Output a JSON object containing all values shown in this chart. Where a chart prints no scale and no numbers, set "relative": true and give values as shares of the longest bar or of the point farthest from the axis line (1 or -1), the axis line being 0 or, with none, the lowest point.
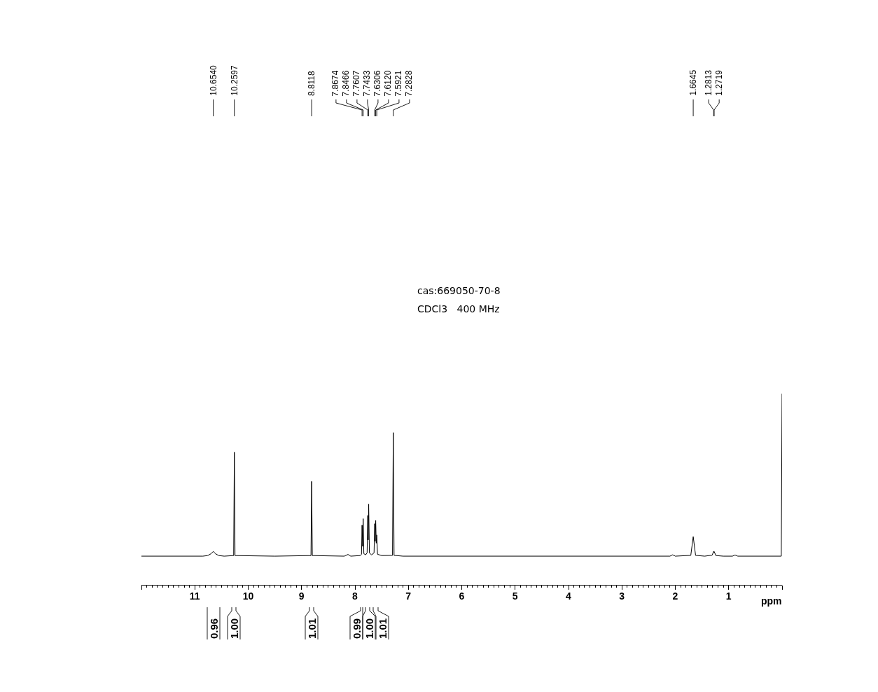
{
  "chart_data": {
    "type": "line",
    "relative": true,
    "title": "cas:669050-70-8",
    "subtitle": "CDCl3   400 MHz",
    "x": [
      12.0,
      10.85,
      10.76,
      10.7,
      10.654,
      10.61,
      10.55,
      10.45,
      10.272,
      10.2597,
      10.247,
      9.5,
      8.824,
      8.8118,
      8.799,
      8.2,
      8.13,
      8.08,
      7.9,
      7.878,
      7.8674,
      7.857,
      7.8466,
      7.834,
      7.8,
      7.773,
      7.7607,
      7.752,
      7.7433,
      7.73,
      7.69,
      7.643,
      7.6306,
      7.621,
      7.612,
      7.602,
      7.5921,
      7.578,
      7.5,
      7.297,
      7.2828,
      7.268,
      7.1,
      2.1,
      2.05,
      2.0,
      1.71,
      1.6645,
      1.62,
      1.45,
      1.31,
      1.2813,
      1.2766,
      1.2719,
      1.24,
      1.1,
      0.93,
      0.88,
      0.83,
      0.015,
      0.0
    ],
    "series": [
      {
        "color": "#000000",
        "values": [
          0.15,
          0.15,
          0.153,
          0.162,
          0.175,
          0.162,
          0.153,
          0.15,
          0.153,
          0.694,
          0.153,
          0.15,
          0.153,
          0.541,
          0.153,
          0.15,
          0.159,
          0.15,
          0.153,
          0.16,
          0.312,
          0.201,
          0.346,
          0.163,
          0.157,
          0.167,
          0.363,
          0.235,
          0.422,
          0.167,
          0.157,
          0.167,
          0.32,
          0.227,
          0.337,
          0.218,
          0.261,
          0.16,
          0.153,
          0.154,
          0.796,
          0.154,
          0.15,
          0.15,
          0.157,
          0.15,
          0.154,
          0.252,
          0.154,
          0.15,
          0.155,
          0.175,
          0.17,
          0.174,
          0.153,
          0.15,
          0.15,
          0.156,
          0.15,
          0.15,
          1.0
        ]
      }
    ],
    "xlim": [
      12,
      0
    ],
    "xticks": [
      {
        "value": 12,
        "label": null
      },
      {
        "value": 11.9,
        "label": null
      },
      {
        "value": 11.8,
        "label": null
      },
      {
        "value": 11.7,
        "label": null
      },
      {
        "value": 11.6,
        "label": null
      },
      {
        "value": 11.5,
        "label": null
      },
      {
        "value": 11.4,
        "label": null
      },
      {
        "value": 11.3,
        "label": null
      },
      {
        "value": 11.2,
        "label": null
      },
      {
        "value": 11.1,
        "label": null
      },
      11,
      {
        "value": 10.9,
        "label": null
      },
      {
        "value": 10.8,
        "label": null
      },
      {
        "value": 10.7,
        "label": null
      },
      {
        "value": 10.6,
        "label": null
      },
      {
        "value": 10.5,
        "label": null
      },
      {
        "value": 10.4,
        "label": null
      },
      {
        "value": 10.3,
        "label": null
      },
      {
        "value": 10.2,
        "label": null
      },
      {
        "value": 10.1,
        "label": null
      },
      10,
      {
        "value": 9.9,
        "label": null
      },
      {
        "value": 9.8,
        "label": null
      },
      {
        "value": 9.7,
        "label": null
      },
      {
        "value": 9.6,
        "label": null
      },
      {
        "value": 9.5,
        "label": null
      },
      {
        "value": 9.4,
        "label": null
      },
      {
        "value": 9.3,
        "label": null
      },
      {
        "value": 9.2,
        "label": null
      },
      {
        "value": 9.1,
        "label": null
      },
      9,
      {
        "value": 8.9,
        "label": null
      },
      {
        "value": 8.8,
        "label": null
      },
      {
        "value": 8.7,
        "label": null
      },
      {
        "value": 8.6,
        "label": null
      },
      {
        "value": 8.5,
        "label": null
      },
      {
        "value": 8.4,
        "label": null
      },
      {
        "value": 8.3,
        "label": null
      },
      {
        "value": 8.2,
        "label": null
      },
      {
        "value": 8.1,
        "label": null
      },
      8,
      {
        "value": 7.9,
        "label": null
      },
      {
        "value": 7.8,
        "label": null
      },
      {
        "value": 7.7,
        "label": null
      },
      {
        "value": 7.6,
        "label": null
      },
      {
        "value": 7.5,
        "label": null
      },
      {
        "value": 7.4,
        "label": null
      },
      {
        "value": 7.3,
        "label": null
      },
      {
        "value": 7.2,
        "label": null
      },
      {
        "value": 7.1,
        "label": null
      },
      7,
      {
        "value": 6.9,
        "label": null
      },
      {
        "value": 6.8,
        "label": null
      },
      {
        "value": 6.7,
        "label": null
      },
      {
        "value": 6.6,
        "label": null
      },
      {
        "value": 6.5,
        "label": null
      },
      {
        "value": 6.4,
        "label": null
      },
      {
        "value": 6.3,
        "label": null
      },
      {
        "value": 6.2,
        "label": null
      },
      {
        "value": 6.1,
        "label": null
      },
      6,
      {
        "value": 5.9,
        "label": null
      },
      {
        "value": 5.8,
        "label": null
      },
      {
        "value": 5.7,
        "label": null
      },
      {
        "value": 5.6,
        "label": null
      },
      {
        "value": 5.5,
        "label": null
      },
      {
        "value": 5.4,
        "label": null
      },
      {
        "value": 5.3,
        "label": null
      },
      {
        "value": 5.2,
        "label": null
      },
      {
        "value": 5.1,
        "label": null
      },
      5,
      {
        "value": 4.9,
        "label": null
      },
      {
        "value": 4.8,
        "label": null
      },
      {
        "value": 4.7,
        "label": null
      },
      {
        "value": 4.6,
        "label": null
      },
      {
        "value": 4.5,
        "label": null
      },
      {
        "value": 4.4,
        "label": null
      },
      {
        "value": 4.3,
        "label": null
      },
      {
        "value": 4.2,
        "label": null
      },
      {
        "value": 4.1,
        "label": null
      },
      4,
      {
        "value": 3.9,
        "label": null
      },
      {
        "value": 3.8,
        "label": null
      },
      {
        "value": 3.7,
        "label": null
      },
      {
        "value": 3.6,
        "label": null
      },
      {
        "value": 3.5,
        "label": null
      },
      {
        "value": 3.4,
        "label": null
      },
      {
        "value": 3.3,
        "label": null
      },
      {
        "value": 3.2,
        "label": null
      },
      {
        "value": 3.1,
        "label": null
      },
      3,
      {
        "value": 2.9,
        "label": null
      },
      {
        "value": 2.8,
        "label": null
      },
      {
        "value": 2.7,
        "label": null
      },
      {
        "value": 2.6,
        "label": null
      },
      {
        "value": 2.5,
        "label": null
      },
      {
        "value": 2.4,
        "label": null
      },
      {
        "value": 2.3,
        "label": null
      },
      {
        "value": 2.2,
        "label": null
      },
      {
        "value": 2.1,
        "label": null
      },
      2,
      {
        "value": 1.9,
        "label": null
      },
      {
        "value": 1.8,
        "label": null
      },
      {
        "value": 1.7,
        "label": null
      },
      {
        "value": 1.6,
        "label": null
      },
      {
        "value": 1.5,
        "label": null
      },
      {
        "value": 1.4,
        "label": null
      },
      {
        "value": 1.3,
        "label": null
      },
      {
        "value": 1.2,
        "label": null
      },
      {
        "value": 1.1,
        "label": null
      },
      1,
      {
        "value": 0.9,
        "label": null
      },
      {
        "value": 0.8,
        "label": null
      },
      {
        "value": 0.7,
        "label": null
      },
      {
        "value": 0.6,
        "label": null
      },
      {
        "value": 0.5,
        "label": null
      },
      {
        "value": 0.4,
        "label": null
      },
      {
        "value": 0.3,
        "label": null
      },
      {
        "value": 0.2,
        "label": null
      },
      {
        "value": 0.1,
        "label": null
      },
      {
        "value": 0,
        "label": null
      }
    ],
    "xlabel": "ppm",
    "annotations": [
      {
        "text": "10.6540",
        "x": 10.654
      },
      {
        "text": "10.2597",
        "x": 10.2597
      },
      {
        "text": "8.8118",
        "x": 8.8118
      },
      {
        "text": "7.8674",
        "x": 7.8674
      },
      {
        "text": "7.8466",
        "x": 7.8466
      },
      {
        "text": "7.7607",
        "x": 7.7607
      },
      {
        "text": "7.7433",
        "x": 7.7433
      },
      {
        "text": "7.6306",
        "x": 7.6306
      },
      {
        "text": "7.6120",
        "x": 7.612
      },
      {
        "text": "7.5921",
        "x": 7.5921
      },
      {
        "text": "7.2828",
        "x": 7.2828
      },
      {
        "text": "1.6645",
        "x": 1.6645
      },
      {
        "text": "1.2813",
        "x": 1.2813
      },
      {
        "text": "1.2719",
        "x": 1.2719
      },
      "0.96",
      "1.00",
      "1.01",
      "0.99",
      "1.00",
      "1.01"
    ]
  }
}
